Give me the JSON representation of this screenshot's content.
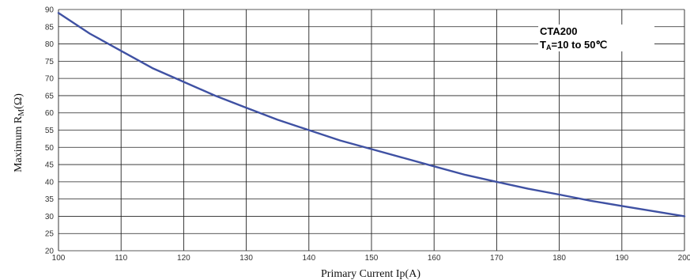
{
  "chart_data": {
    "type": "line",
    "xlabel": "Primary Current Ip(A)",
    "ylabel": "Maximum R",
    "ylabel_sub": "M",
    "ylabel_unit": "(Ω)",
    "xlim": [
      100,
      200
    ],
    "ylim": [
      20,
      90
    ],
    "xticks": [
      100,
      110,
      120,
      130,
      140,
      150,
      160,
      170,
      180,
      190,
      200
    ],
    "yticks": [
      20,
      25,
      30,
      35,
      40,
      45,
      50,
      55,
      60,
      65,
      70,
      75,
      80,
      85,
      90
    ],
    "grid": true,
    "legend": {
      "line1": "CTA200",
      "line2_prefix": "T",
      "line2_sub": "A",
      "line2_rest": "=10 to 50℃",
      "placement": "top-right"
    },
    "series": [
      {
        "color": "#3f51a3",
        "x": [
          100,
          105,
          110,
          115,
          120,
          125,
          130,
          135,
          140,
          145,
          150,
          155,
          160,
          165,
          170,
          175,
          180,
          185,
          190,
          195,
          200
        ],
        "y": [
          89,
          83,
          78,
          73,
          69,
          65,
          61.5,
          58,
          55,
          52,
          49.5,
          47,
          44.5,
          42,
          40,
          38,
          36.3,
          34.5,
          33,
          31.5,
          30
        ]
      }
    ]
  }
}
